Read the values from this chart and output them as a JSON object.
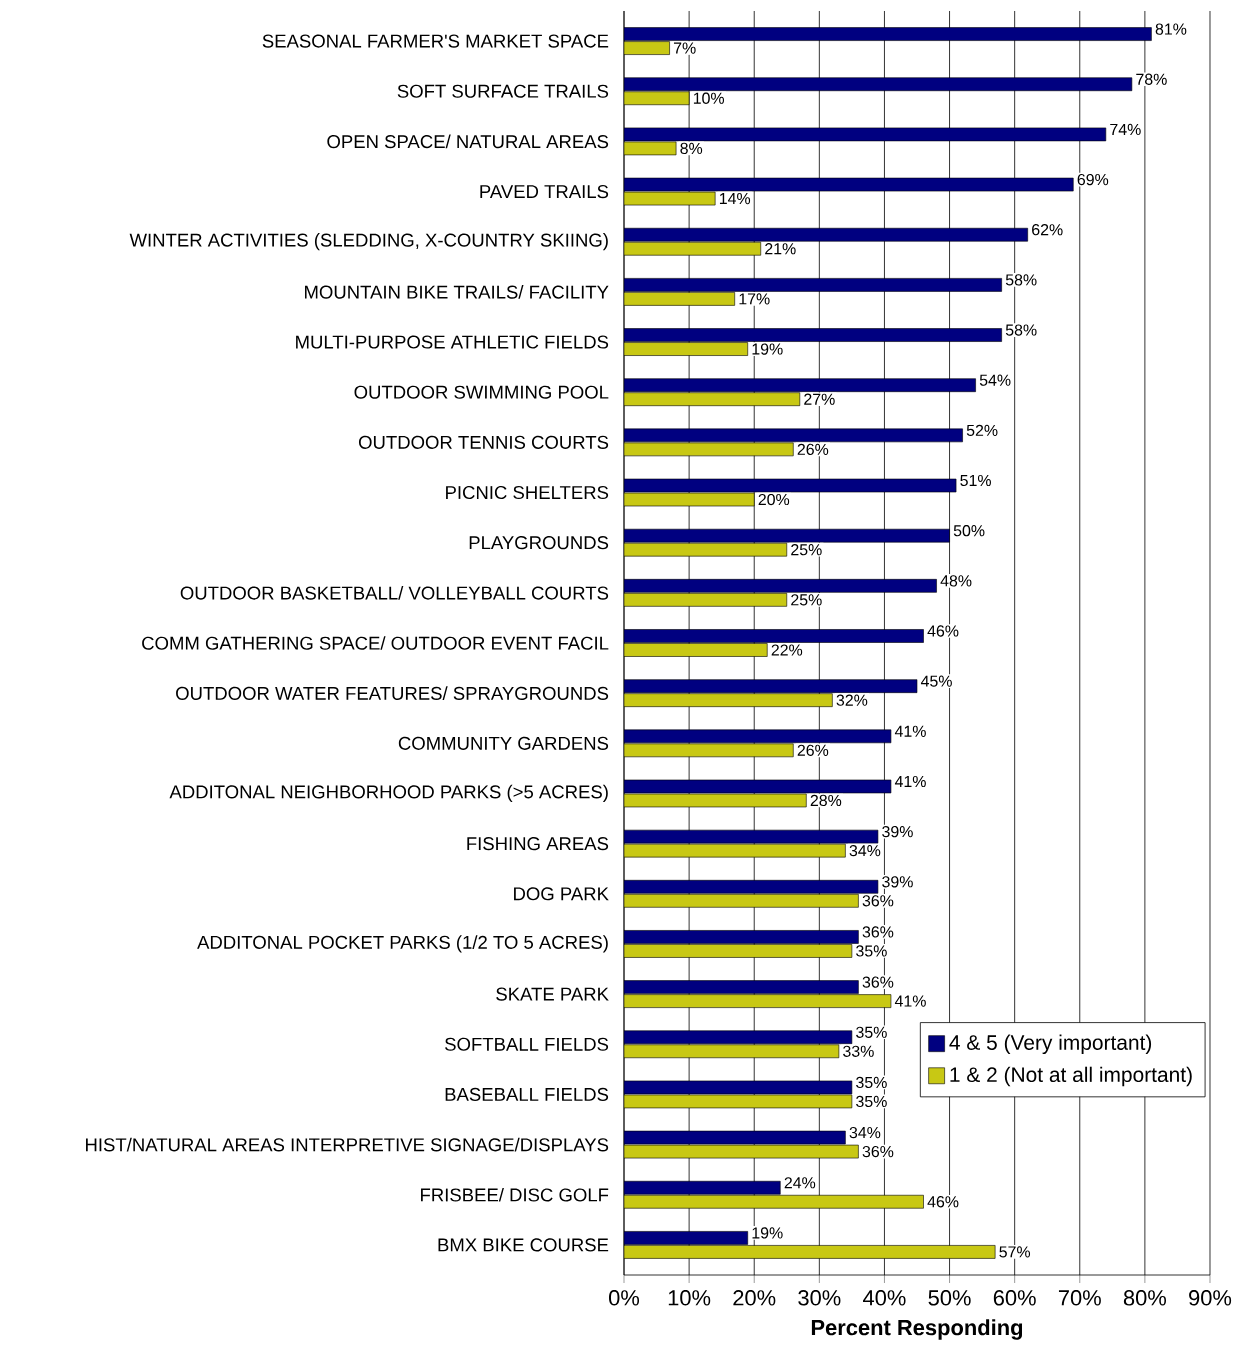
{
  "chart_data": {
    "type": "bar",
    "orientation": "horizontal",
    "xlabel": "Percent Responding",
    "categories": [
      "SEASONAL FARMER'S MARKET SPACE",
      "SOFT SURFACE TRAILS",
      "OPEN SPACE/ NATURAL AREAS",
      "PAVED TRAILS",
      "WINTER ACTIVITIES (SLEDDING, X-COUNTRY SKIING)",
      "MOUNTAIN BIKE TRAILS/ FACILITY",
      "MULTI-PURPOSE ATHLETIC FIELDS",
      "OUTDOOR SWIMMING POOL",
      "OUTDOOR TENNIS COURTS",
      "PICNIC SHELTERS",
      "PLAYGROUNDS",
      "OUTDOOR BASKETBALL/ VOLLEYBALL COURTS",
      "COMM GATHERING SPACE/ OUTDOOR EVENT FACIL",
      "OUTDOOR WATER FEATURES/ SPRAYGROUNDS",
      "COMMUNITY GARDENS",
      "ADDITONAL NEIGHBORHOOD PARKS (>5 ACRES)",
      "FISHING AREAS",
      "DOG PARK",
      "ADDITONAL POCKET PARKS (1/2 TO 5 ACRES)",
      "SKATE PARK",
      "SOFTBALL FIELDS",
      "BASEBALL FIELDS",
      "HIST/NATURAL AREAS INTERPRETIVE SIGNAGE/DISPLAYS",
      "FRISBEE/ DISC GOLF",
      "BMX BIKE COURSE"
    ],
    "series": [
      {
        "name": "4 & 5 (Very important)",
        "color": "#000080",
        "values": [
          81,
          78,
          74,
          69,
          62,
          58,
          58,
          54,
          52,
          51,
          50,
          48,
          46,
          45,
          41,
          41,
          39,
          39,
          36,
          36,
          35,
          35,
          34,
          24,
          19
        ],
        "value_labels": [
          "81%",
          "78%",
          "74%",
          "69%",
          "62%",
          "58%",
          "58%",
          "54%",
          "52%",
          "51%",
          "50%",
          "48%",
          "46%",
          "45%",
          "41%",
          "41%",
          "39%",
          "39%",
          "36%",
          "36%",
          "35%",
          "35%",
          "34%",
          "24%",
          "19%"
        ]
      },
      {
        "name": "1 & 2 (Not at all important)",
        "color": "#c8c814",
        "values": [
          7,
          10,
          8,
          14,
          21,
          17,
          19,
          27,
          26,
          20,
          25,
          25,
          22,
          32,
          26,
          28,
          34,
          36,
          35,
          41,
          33,
          35,
          36,
          46,
          57
        ],
        "value_labels": [
          "7%",
          "10%",
          "8%",
          "14%",
          "21%",
          "17%",
          "19%",
          "27%",
          "26%",
          "20%",
          "25%",
          "25%",
          "22%",
          "32%",
          "26%",
          "28%",
          "34%",
          "36%",
          "35%",
          "41%",
          "33%",
          "35%",
          "36%",
          "46%",
          "57%"
        ]
      }
    ],
    "xlim": [
      0,
      90
    ],
    "xticks": [
      {
        "value": 0,
        "label": "0%"
      },
      {
        "value": 10,
        "label": "10%"
      },
      {
        "value": 20,
        "label": "20%"
      },
      {
        "value": 30,
        "label": "30%"
      },
      {
        "value": 40,
        "label": "40%"
      },
      {
        "value": 50,
        "label": "50%"
      },
      {
        "value": 60,
        "label": "60%"
      },
      {
        "value": 70,
        "label": "70%"
      },
      {
        "value": 80,
        "label": "80%"
      },
      {
        "value": 90,
        "label": "90%"
      }
    ],
    "grid": "x",
    "legend": "right"
  }
}
